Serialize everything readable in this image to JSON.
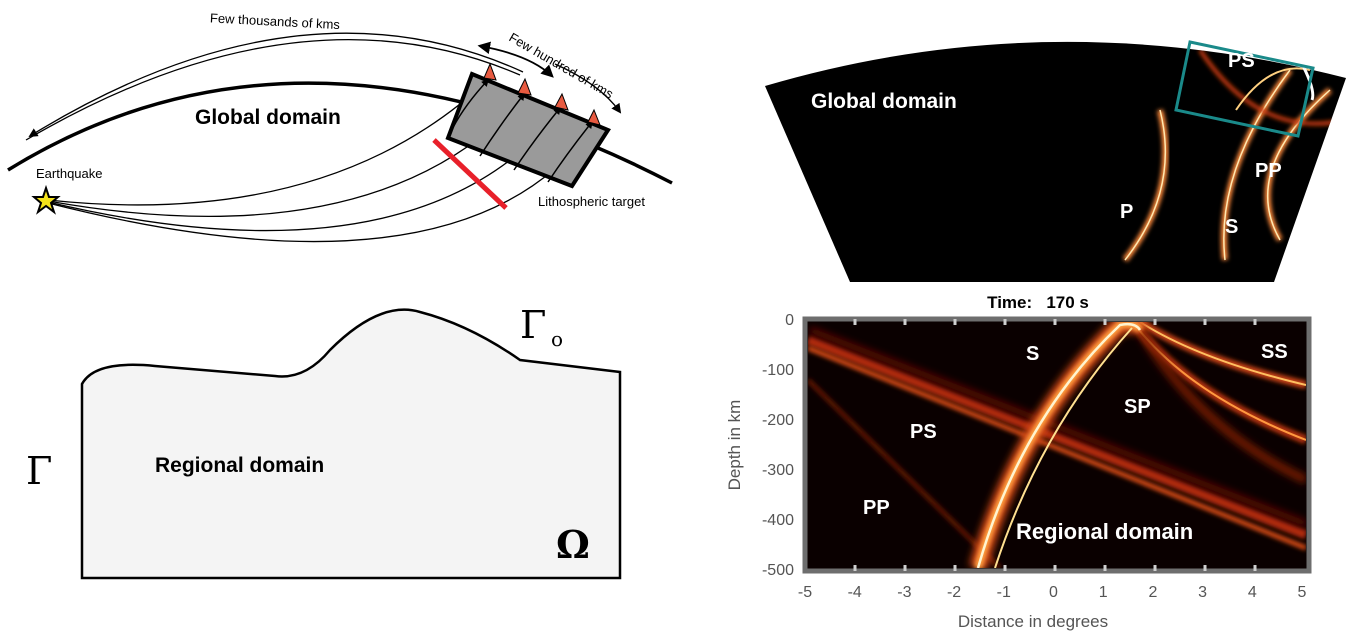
{
  "global_schematic": {
    "domain_label": "Global domain",
    "arc_label_long": "Few thousands of kms",
    "arc_label_short": "Few hundred of kms",
    "source_label": "Earthquake",
    "target_label": "Lithospheric target"
  },
  "regional_schematic": {
    "domain_label": "Regional domain",
    "top_boundary_symbol": "Γ",
    "top_boundary_subscript": "o",
    "side_boundary_symbol": "Γ",
    "interior_symbol": "Ω"
  },
  "global_snapshot": {
    "domain_label": "Global domain",
    "phase_labels": [
      "PS",
      "PP",
      "P",
      "S"
    ]
  },
  "regional_snapshot": {
    "title": "Time:   170 s",
    "domain_label": "Regional domain",
    "phase_labels": [
      "S",
      "SS",
      "SP",
      "PS",
      "PP"
    ],
    "xlabel": "Distance in degrees",
    "ylabel": "Depth in km",
    "x_ticks": [
      "-5",
      "-4",
      "-3",
      "-2",
      "-1",
      "0",
      "1",
      "2",
      "3",
      "4",
      "5"
    ],
    "y_ticks": [
      "0",
      "-100",
      "-200",
      "-300",
      "-400",
      "-500"
    ],
    "xlim": [
      -5,
      5
    ],
    "ylim": [
      -500,
      0
    ]
  },
  "colors": {
    "lithosphere_fill": "#9a9a9a",
    "cross_section_line": "#e8202a",
    "station_marker": "#e85a40",
    "zoom_box": "#1a8a8a",
    "regional_fill": "#f4f4f4"
  }
}
